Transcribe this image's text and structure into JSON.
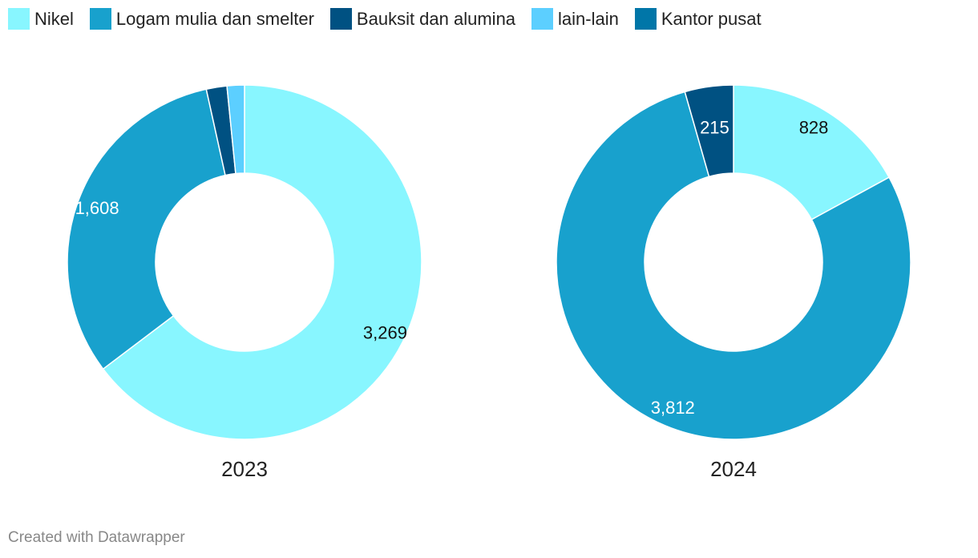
{
  "legend": [
    {
      "label": "Nikel",
      "color": "#88f6ff"
    },
    {
      "label": "Logam mulia dan smelter",
      "color": "#18a1cd"
    },
    {
      "label": "Bauksit dan alumina",
      "color": "#005182"
    },
    {
      "label": "lain-lain",
      "color": "#5ccfff"
    },
    {
      "label": "Kantor pusat",
      "color": "#0076a8"
    }
  ],
  "chart_data": [
    {
      "type": "pie",
      "variant": "donut",
      "title": "2023",
      "categories": [
        "Nikel",
        "Logam mulia dan smelter",
        "Bauksit dan alumina",
        "lain-lain",
        "Kantor pusat"
      ],
      "values": [
        3269,
        1608,
        95,
        80,
        0
      ],
      "data_labels": [
        "3,269",
        "1,608",
        "",
        "",
        ""
      ]
    },
    {
      "type": "pie",
      "variant": "donut",
      "title": "2024",
      "categories": [
        "Nikel",
        "Logam mulia dan smelter",
        "Bauksit dan alumina",
        "lain-lain",
        "Kantor pusat"
      ],
      "values": [
        828,
        3812,
        215,
        0,
        0
      ],
      "data_labels": [
        "828",
        "3,812",
        "215",
        "",
        ""
      ]
    }
  ],
  "footer": "Created with Datawrapper"
}
